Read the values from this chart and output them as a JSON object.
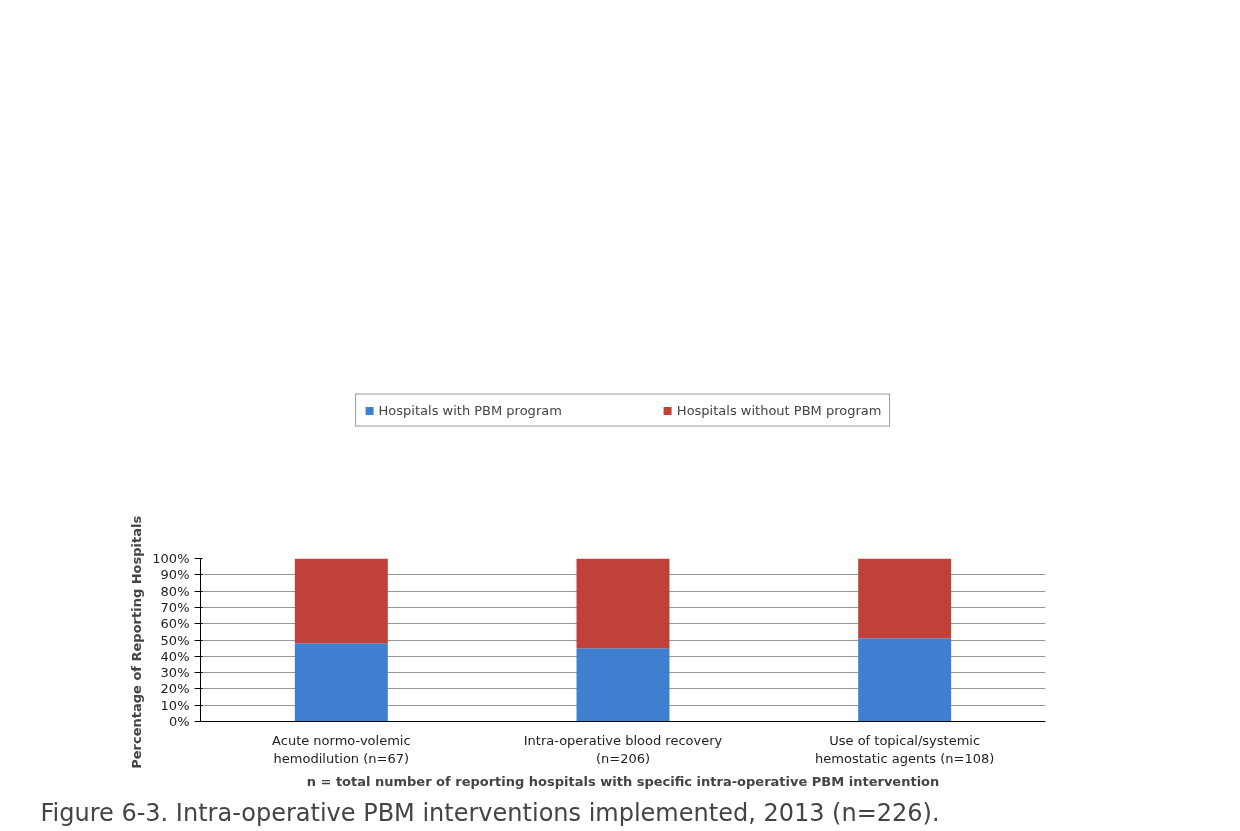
{
  "chart_data": {
    "type": "bar",
    "stacked": true,
    "title": "Figure 6-3. Intra-operative PBM interventions implemented, 2013 (n=226).",
    "ylabel": "Percentage  of Reporting Hospitals",
    "xlabel": "n = total number of reporting hospitals with specific intra-operative PBM intervention",
    "categories": [
      "Acute normo-volemic hemodilution (n=67)",
      "Intra-operative blood recovery (n=206)",
      "Use of topical/systemic hemostatic agents (n=108)"
    ],
    "series": [
      {
        "name": "Hospitals with PBM program",
        "color": "#3f7fd0",
        "values": [
          48,
          45,
          51
        ]
      },
      {
        "name": "Hospitals without PBM program",
        "color": "#c0403a",
        "values": [
          52,
          55,
          49
        ]
      }
    ],
    "ylim": [
      0,
      100
    ],
    "yticks": [
      {
        "value": 0,
        "label": "0%"
      },
      {
        "value": 10,
        "label": "10%"
      },
      {
        "value": 20,
        "label": "20%"
      },
      {
        "value": 30,
        "label": "30%"
      },
      {
        "value": 40,
        "label": "40%"
      },
      {
        "value": 50,
        "label": "50%"
      },
      {
        "value": 60,
        "label": "60%"
      },
      {
        "value": 70,
        "label": "70%"
      },
      {
        "value": 80,
        "label": "80%"
      },
      {
        "value": 90,
        "label": "90%"
      },
      {
        "value": 100,
        "label": "100%"
      }
    ],
    "grid": "y",
    "legend": "top"
  }
}
